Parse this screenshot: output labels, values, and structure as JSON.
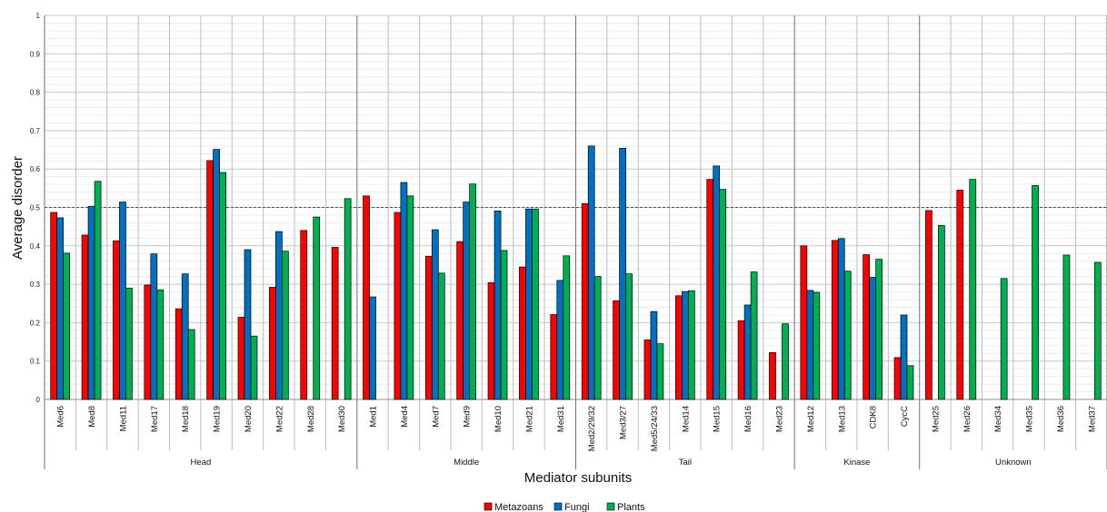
{
  "chart_data": {
    "type": "bar",
    "ylabel": "Average disorder",
    "xlabel": "Mediator subunits",
    "ylim": [
      0,
      1
    ],
    "yticks": [
      "0",
      "0.1",
      "0.2",
      "0.3",
      "0.4",
      "0.5",
      "0.6",
      "0.7",
      "0.8",
      "0.9",
      "1"
    ],
    "reference_line": 0.5,
    "grid": true,
    "legend_position": "bottom",
    "colors": {
      "Metazoans": "#ff0000",
      "Fungi": "#0070c0",
      "Plants": "#00b050"
    },
    "categories": [
      "Med6",
      "Med8",
      "Med11",
      "Med17",
      "Med18",
      "Med19",
      "Med20",
      "Med22",
      "Med28",
      "Med30",
      "Med1",
      "Med4",
      "Med7",
      "Med9",
      "Med10",
      "Med21",
      "Med31",
      "Med2/29/32",
      "Med3/27",
      "Med5/24/33",
      "Med14",
      "Med15",
      "Med16",
      "Med23",
      "Med12",
      "Med13",
      "CDK8",
      "CycC",
      "Med25",
      "Med26",
      "Med34",
      "Med35",
      "Med36",
      "Med37"
    ],
    "groups": [
      {
        "name": "Head",
        "count": 10
      },
      {
        "name": "Middle",
        "count": 7
      },
      {
        "name": "Tail",
        "count": 7
      },
      {
        "name": "Kinase",
        "count": 4
      },
      {
        "name": "Unknown",
        "count": 6
      }
    ],
    "series": [
      {
        "name": "Metazoans",
        "values": [
          0.487,
          0.428,
          0.413,
          0.298,
          0.236,
          0.622,
          0.214,
          0.292,
          0.44,
          0.396,
          0.53,
          0.487,
          0.373,
          0.411,
          0.304,
          0.345,
          0.221,
          0.51,
          0.257,
          0.155,
          0.27,
          0.573,
          0.205,
          0.122,
          0.4,
          0.414,
          0.377,
          0.109,
          0.492,
          0.545,
          null,
          null,
          null,
          null
        ]
      },
      {
        "name": "Fungi",
        "values": [
          0.473,
          0.503,
          0.514,
          0.379,
          0.327,
          0.651,
          0.39,
          0.437,
          null,
          null,
          0.267,
          0.565,
          0.442,
          0.514,
          0.491,
          0.496,
          0.31,
          0.66,
          0.654,
          0.229,
          0.281,
          0.608,
          0.246,
          null,
          0.284,
          0.419,
          0.318,
          0.22,
          null,
          null,
          null,
          null,
          null,
          null
        ]
      },
      {
        "name": "Plants",
        "values": [
          0.381,
          0.568,
          0.29,
          0.285,
          0.182,
          0.591,
          0.165,
          0.386,
          0.475,
          0.523,
          null,
          0.53,
          0.329,
          0.561,
          0.388,
          0.496,
          0.374,
          0.32,
          0.327,
          0.145,
          0.283,
          0.547,
          0.332,
          0.197,
          0.279,
          0.334,
          0.365,
          0.088,
          0.453,
          0.573,
          0.315,
          0.557,
          0.376,
          0.357
        ]
      }
    ]
  }
}
